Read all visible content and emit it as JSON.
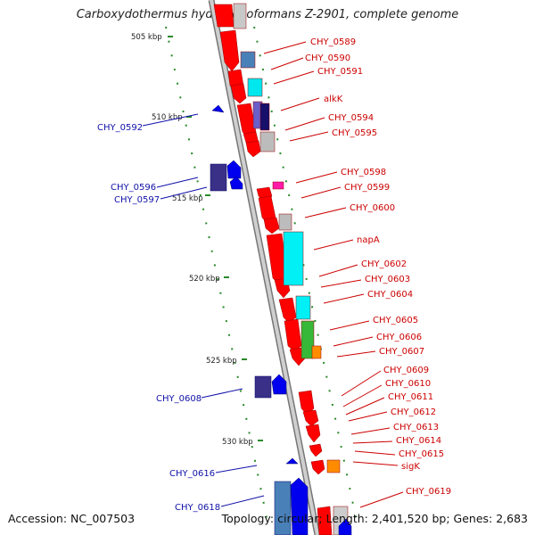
{
  "title": "Carboxydothermus hydrogenoformans Z-2901, complete genome",
  "footer": {
    "accession": "Accession: NC_007503",
    "topology": "Topology: circular; Length: 2,401,520 bp; Genes: 2,683"
  },
  "colors": {
    "forward_label": "#cc0000",
    "reverse_label": "#1010aa",
    "tick": "#2a8a2a",
    "forward_gene": "#ff0000",
    "reverse_gene": "#0000ee",
    "axis": "#999999"
  },
  "ticks": [
    "505 kbp",
    "510 kbp",
    "515 kbp",
    "520 kbp",
    "525 kbp",
    "530 kbp"
  ],
  "forward_labels": [
    "CHY_0589",
    "CHY_0590",
    "CHY_0591",
    "alkK",
    "CHY_0594",
    "CHY_0595",
    "CHY_0598",
    "CHY_0599",
    "CHY_0600",
    "napA",
    "CHY_0602",
    "CHY_0603",
    "CHY_0604",
    "CHY_0605",
    "CHY_0606",
    "CHY_0607",
    "CHY_0609",
    "CHY_0610",
    "CHY_0611",
    "CHY_0612",
    "CHY_0613",
    "CHY_0614",
    "CHY_0615",
    "sigK",
    "CHY_0619"
  ],
  "reverse_labels": [
    "CHY_0592",
    "CHY_0596",
    "CHY_0597",
    "CHY_0608",
    "CHY_0616",
    "CHY_0618"
  ]
}
